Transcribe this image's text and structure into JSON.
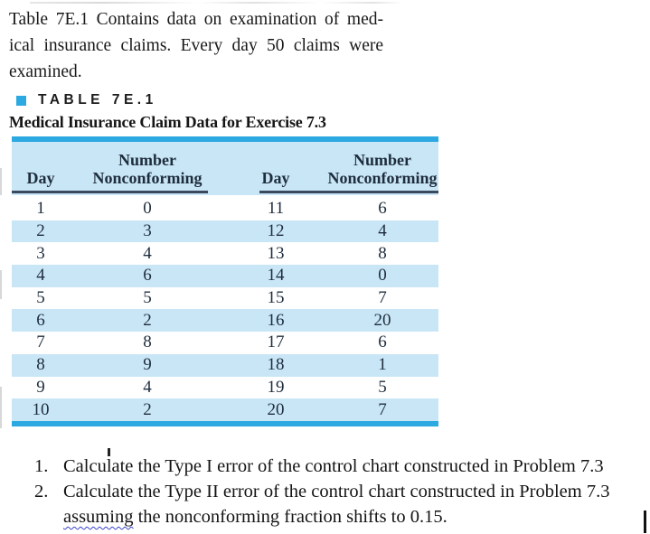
{
  "intro": {
    "line1": "Table 7E.1 Contains data on examination of med-",
    "line2": "ical insurance claims. Every day 50 claims were",
    "line3": "examined."
  },
  "table": {
    "eyebrow_label": "TABLE 7E.1",
    "title": "Medical Insurance Claim Data for Exercise 7.3",
    "header": {
      "day": "Day",
      "number": "Number",
      "nonconforming": "Nonconforming"
    },
    "rows": [
      {
        "day_a": "1",
        "nc_a": "0",
        "day_b": "11",
        "nc_b": "6"
      },
      {
        "day_a": "2",
        "nc_a": "3",
        "day_b": "12",
        "nc_b": "4"
      },
      {
        "day_a": "3",
        "nc_a": "4",
        "day_b": "13",
        "nc_b": "8"
      },
      {
        "day_a": "4",
        "nc_a": "6",
        "day_b": "14",
        "nc_b": "0"
      },
      {
        "day_a": "5",
        "nc_a": "5",
        "day_b": "15",
        "nc_b": "7"
      },
      {
        "day_a": "6",
        "nc_a": "2",
        "day_b": "16",
        "nc_b": "20"
      },
      {
        "day_a": "7",
        "nc_a": "8",
        "day_b": "17",
        "nc_b": "6"
      },
      {
        "day_a": "8",
        "nc_a": "9",
        "day_b": "18",
        "nc_b": "1"
      },
      {
        "day_a": "9",
        "nc_a": "4",
        "day_b": "19",
        "nc_b": "5"
      },
      {
        "day_a": "10",
        "nc_a": "2",
        "day_b": "20",
        "nc_b": "7"
      }
    ]
  },
  "questions": {
    "item1": {
      "number": "1.",
      "text": "Calculate the Type I error of the control chart constructed in Problem 7.3"
    },
    "item2": {
      "number": "2.",
      "line1": "Calculate the Type II error of the control chart constructed in Problem 7.3",
      "line2_word": "assuming",
      "line2_rest": " the nonconforming fraction shifts to 0.15."
    }
  },
  "colors": {
    "accent_cyan": "#2CA9E0",
    "stripe_blue": "#C9E6F6",
    "table_text": "#1E2D3D",
    "squiggle_blue": "#3B43C8"
  }
}
